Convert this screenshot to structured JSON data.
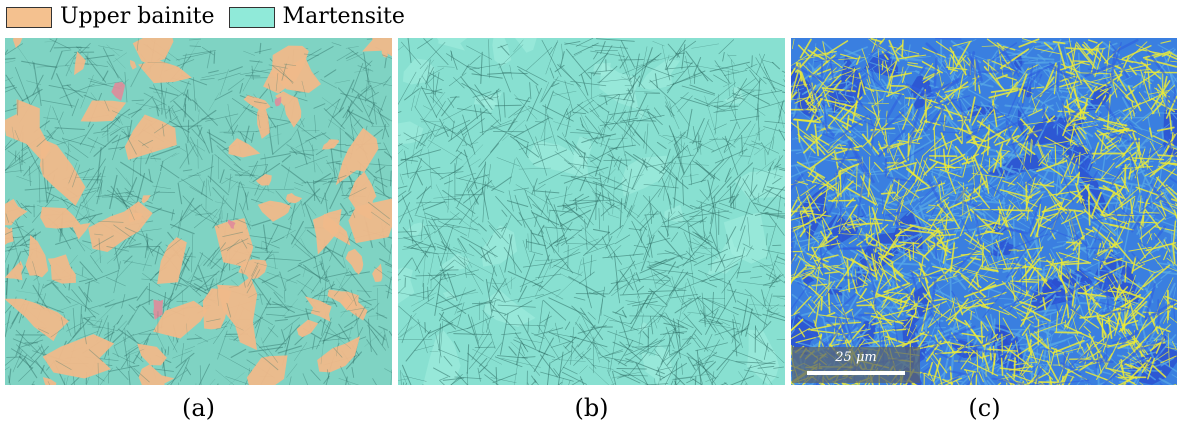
{
  "legend": {
    "items": [
      {
        "label": "Upper bainite",
        "color": "#f4c18f"
      },
      {
        "label": "Martensite",
        "color": "#90ead9"
      }
    ]
  },
  "panels": [
    {
      "caption": "(a)",
      "base_color": "#7fd3c3",
      "overlay_color": "#f0b98a",
      "accent_color": "#e08b9a"
    },
    {
      "caption": "(b)",
      "base_color": "#88e0d1",
      "overlay_color": "#7ccbbd"
    },
    {
      "caption": "(c)",
      "base_color": "#3a7fe0",
      "overlay_color": "#e8e840",
      "accent_color": "#2b4fd0"
    }
  ],
  "scalebar": {
    "label": "25 μm"
  },
  "colors": {
    "line_dark": "#2f6f66",
    "yellow": "#eaea3a",
    "blue": "#2f5fe0",
    "light_blue": "#59a9e6"
  }
}
